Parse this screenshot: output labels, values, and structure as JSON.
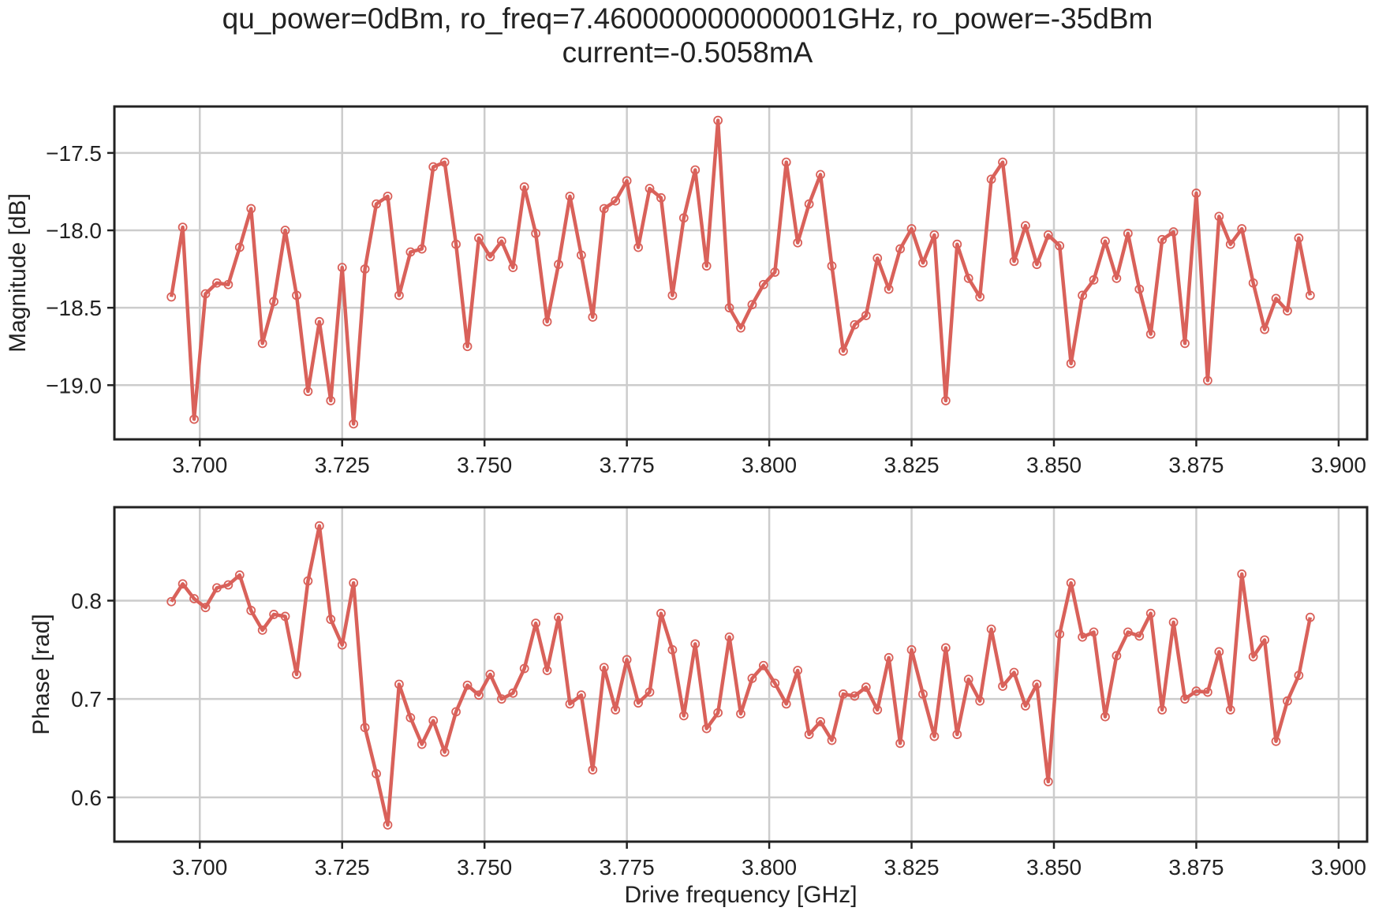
{
  "figure": {
    "title_line1": "qu_power=0dBm, ro_freq=7.460000000000001GHz, ro_power=-35dBm",
    "title_line2": "current=-0.5058mA"
  },
  "colors": {
    "series": "#d9615a",
    "grid": "#cccccc",
    "frame": "#222222"
  },
  "chart_data": [
    {
      "type": "line",
      "ylabel": "Magnitude [dB]",
      "xlabel": "",
      "xlim": [
        3.685,
        3.905
      ],
      "ylim": [
        -19.35,
        -17.2
      ],
      "xticks": [
        3.7,
        3.725,
        3.75,
        3.775,
        3.8,
        3.825,
        3.85,
        3.875,
        3.9
      ],
      "xtick_labels": [
        "3.700",
        "3.725",
        "3.750",
        "3.775",
        "3.800",
        "3.825",
        "3.850",
        "3.875",
        "3.900"
      ],
      "yticks": [
        -17.5,
        -18.0,
        -18.5,
        -19.0
      ],
      "ytick_labels": [
        "−17.5",
        "−18.0",
        "−18.5",
        "−19.0"
      ],
      "grid": true,
      "marker": "open-circle",
      "x_start": 3.695,
      "x_step": 0.002,
      "y": [
        -18.43,
        -17.98,
        -19.22,
        -18.41,
        -18.34,
        -18.35,
        -18.11,
        -17.86,
        -18.73,
        -18.46,
        -18.0,
        -18.42,
        -19.04,
        -18.59,
        -19.1,
        -18.24,
        -19.25,
        -18.25,
        -17.83,
        -17.78,
        -18.42,
        -18.14,
        -18.12,
        -17.59,
        -17.56,
        -18.09,
        -18.75,
        -18.05,
        -18.17,
        -18.07,
        -18.24,
        -17.72,
        -18.02,
        -18.59,
        -18.22,
        -17.78,
        -18.16,
        -18.56,
        -17.86,
        -17.81,
        -17.68,
        -18.11,
        -17.73,
        -17.79,
        -18.42,
        -17.92,
        -17.61,
        -18.23,
        -17.29,
        -18.5,
        -18.63,
        -18.48,
        -18.35,
        -18.27,
        -17.56,
        -18.08,
        -17.83,
        -17.64,
        -18.23,
        -18.78,
        -18.61,
        -18.55,
        -18.18,
        -18.38,
        -18.12,
        -17.99,
        -18.21,
        -18.03,
        -19.1,
        -18.09,
        -18.31,
        -18.43,
        -17.67,
        -17.56,
        -18.2,
        -17.97,
        -18.22,
        -18.03,
        -18.1,
        -18.86,
        -18.42,
        -18.32,
        -18.07,
        -18.31,
        -18.02,
        -18.38,
        -18.67,
        -18.06,
        -18.01,
        -18.73,
        -17.76,
        -18.97,
        -17.91,
        -18.09,
        -17.99,
        -18.34,
        -18.64,
        -18.44,
        -18.52,
        -18.05,
        -18.42
      ]
    },
    {
      "type": "line",
      "ylabel": "Phase [rad]",
      "xlabel": "Drive frequency [GHz]",
      "xlim": [
        3.685,
        3.905
      ],
      "ylim": [
        0.555,
        0.895
      ],
      "xticks": [
        3.7,
        3.725,
        3.75,
        3.775,
        3.8,
        3.825,
        3.85,
        3.875,
        3.9
      ],
      "xtick_labels": [
        "3.700",
        "3.725",
        "3.750",
        "3.775",
        "3.800",
        "3.825",
        "3.850",
        "3.875",
        "3.900"
      ],
      "yticks": [
        0.6,
        0.7,
        0.8
      ],
      "ytick_labels": [
        "0.6",
        "0.7",
        "0.8"
      ],
      "grid": true,
      "marker": "open-circle",
      "x_start": 3.695,
      "x_step": 0.002,
      "y": [
        0.799,
        0.817,
        0.802,
        0.793,
        0.813,
        0.816,
        0.826,
        0.79,
        0.77,
        0.786,
        0.784,
        0.725,
        0.82,
        0.876,
        0.781,
        0.755,
        0.818,
        0.671,
        0.624,
        0.572,
        0.715,
        0.681,
        0.654,
        0.678,
        0.646,
        0.687,
        0.714,
        0.704,
        0.725,
        0.7,
        0.706,
        0.731,
        0.777,
        0.729,
        0.783,
        0.695,
        0.704,
        0.628,
        0.732,
        0.689,
        0.74,
        0.696,
        0.707,
        0.787,
        0.75,
        0.683,
        0.756,
        0.67,
        0.686,
        0.763,
        0.685,
        0.721,
        0.734,
        0.716,
        0.695,
        0.729,
        0.664,
        0.677,
        0.658,
        0.705,
        0.703,
        0.712,
        0.689,
        0.742,
        0.655,
        0.75,
        0.705,
        0.662,
        0.752,
        0.664,
        0.72,
        0.698,
        0.771,
        0.713,
        0.727,
        0.693,
        0.715,
        0.616,
        0.766,
        0.818,
        0.763,
        0.768,
        0.682,
        0.744,
        0.768,
        0.764,
        0.787,
        0.689,
        0.778,
        0.7,
        0.708,
        0.707,
        0.748,
        0.689,
        0.827,
        0.743,
        0.76,
        0.657,
        0.698,
        0.724,
        0.783
      ]
    }
  ]
}
